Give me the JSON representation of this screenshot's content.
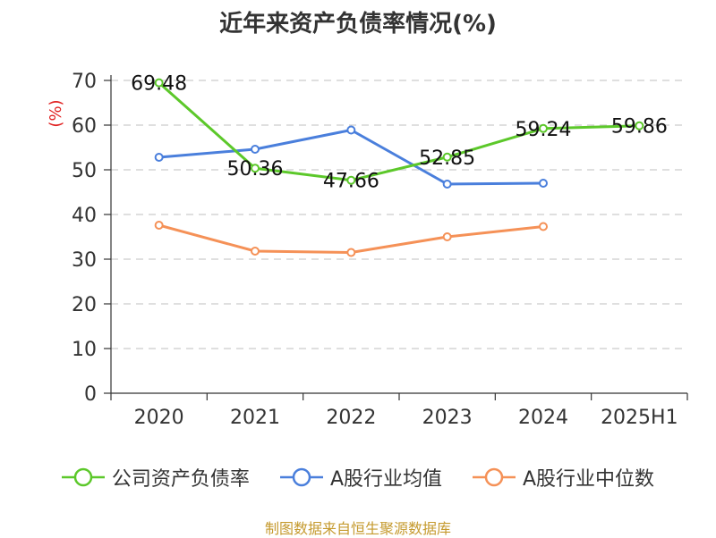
{
  "chart_data": {
    "type": "line",
    "title": "近年来资产负债率情况(%)",
    "ylabel": "(%)",
    "categories": [
      "2020",
      "2021",
      "2022",
      "2023",
      "2024",
      "2025H1"
    ],
    "ylim": [
      0,
      70
    ],
    "yticks": [
      0,
      10,
      20,
      30,
      40,
      50,
      60,
      70
    ],
    "grid": true,
    "legend_position": "bottom",
    "series": [
      {
        "name": "公司资产负债率",
        "color": "#5cc82a",
        "values": [
          69.48,
          50.36,
          47.66,
          52.85,
          59.24,
          59.86
        ],
        "labels": [
          "69.48",
          "50.36",
          "47.66",
          "52.85",
          "59.24",
          "59.86"
        ]
      },
      {
        "name": "A股行业均值",
        "color": "#4a7fdc",
        "values": [
          52.8,
          54.6,
          58.9,
          46.8,
          47.0,
          null
        ],
        "labels": []
      },
      {
        "name": "A股行业中位数",
        "color": "#f59157",
        "values": [
          37.6,
          31.8,
          31.5,
          35.0,
          37.3,
          null
        ],
        "labels": []
      }
    ]
  },
  "source": "制图数据来自恒生聚源数据库"
}
